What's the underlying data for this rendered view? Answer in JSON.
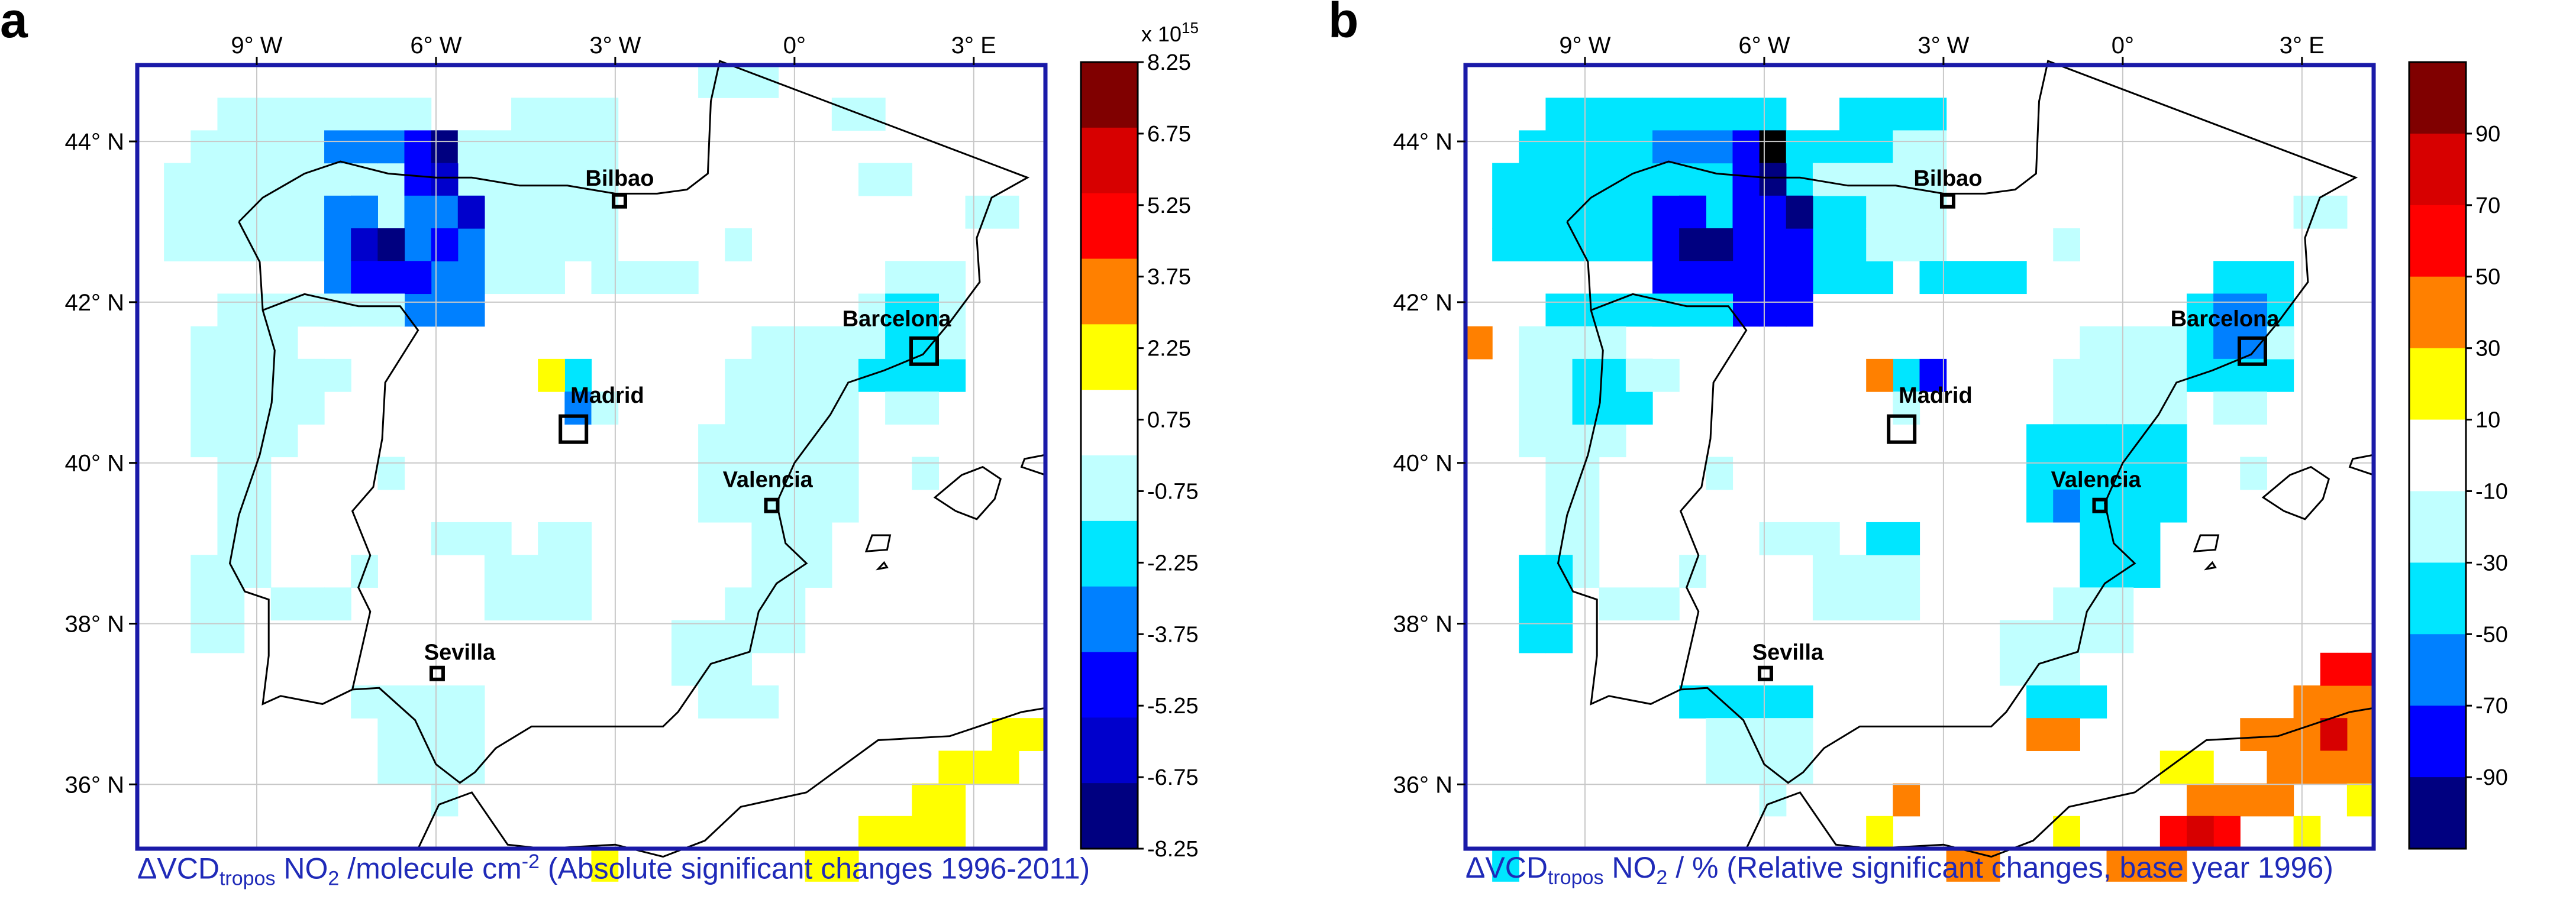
{
  "chart_data": [
    {
      "panel": "a",
      "type": "heatmap",
      "caption": {
        "delta": "ΔVCD",
        "sub": "tropos",
        "species": " NO",
        "species_sub": "2",
        "unit_text": " /molecule cm",
        "unit_sup": "-2",
        "tail": " (Absolute significant changes 1996-2011)"
      },
      "colorbar": {
        "exponent_label": "x 10",
        "exponent_sup": "15",
        "tick_labels": [
          "8.25",
          "6.75",
          "5.25",
          "3.75",
          "2.25",
          "0.75",
          "-0.75",
          "-2.25",
          "-3.75",
          "-5.25",
          "-6.75",
          "-8.25"
        ],
        "colors": [
          "#800000",
          "#d70000",
          "#ff0000",
          "#ff8000",
          "#ffff00",
          "#ffffff",
          "#c0ffff",
          "#00e6ff",
          "#0080ff",
          "#0000ff",
          "#0000cc",
          "#000080"
        ]
      },
      "lon_ticks": [
        "9° W",
        "6° W",
        "3° W",
        "0°",
        "3° E"
      ],
      "lat_ticks": [
        "44° N",
        "42° N",
        "40° N",
        "38° N",
        "36° N"
      ],
      "cities": [
        "Bilbao",
        "Barcelona",
        "Madrid",
        "Valencia",
        "Sevilla"
      ]
    },
    {
      "panel": "b",
      "type": "heatmap",
      "caption": {
        "delta": "ΔVCD",
        "sub": "tropos",
        "species": " NO",
        "species_sub": "2",
        "unit_text": " / % (Relative significant changes, base year 1996)",
        "unit_sup": "",
        "tail": ""
      },
      "colorbar": {
        "tick_labels": [
          "90",
          "70",
          "50",
          "30",
          "10",
          "-10",
          "-30",
          "-50",
          "-70",
          "-90"
        ],
        "colors": [
          "#800000",
          "#d70000",
          "#ff0000",
          "#ff8000",
          "#ffff00",
          "#ffffff",
          "#c0ffff",
          "#00e6ff",
          "#0080ff",
          "#0000ff",
          "#000080"
        ]
      },
      "lon_ticks": [
        "9° W",
        "6° W",
        "3° W",
        "0°",
        "3° E"
      ],
      "lat_ticks": [
        "44° N",
        "42° N",
        "40° N",
        "38° N",
        "36° N"
      ],
      "cities": [
        "Bilbao",
        "Barcelona",
        "Madrid",
        "Valencia",
        "Sevilla"
      ]
    }
  ],
  "panel_labels": [
    "a",
    "b"
  ]
}
